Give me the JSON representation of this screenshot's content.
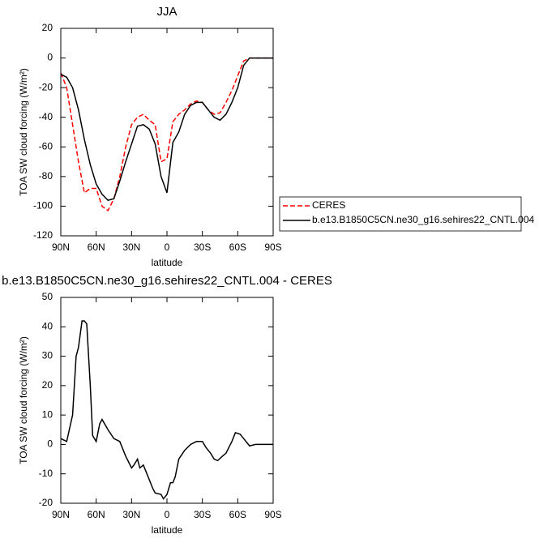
{
  "chart_data": [
    {
      "type": "line",
      "title": "JJA",
      "xlabel": "latitude",
      "ylabel": "TOA SW cloud forcing (W/m²)",
      "x": [
        90,
        85,
        80,
        75,
        70,
        65,
        60,
        55,
        50,
        45,
        40,
        35,
        30,
        25,
        20,
        15,
        10,
        5,
        0,
        -5,
        -10,
        -15,
        -20,
        -25,
        -30,
        -35,
        -40,
        -45,
        -50,
        -55,
        -60,
        -65,
        -70,
        -75,
        -80,
        -85,
        -90
      ],
      "series": [
        {
          "name": "CERES",
          "color": "#ff0000",
          "linestyle": "dashed",
          "values": [
            -10,
            -20,
            -45,
            -70,
            -91,
            -88,
            -88,
            -100,
            -103,
            -95,
            -80,
            -60,
            -45,
            -40,
            -38,
            -42,
            -45,
            -70,
            -68,
            -43,
            -38,
            -35,
            -31,
            -29,
            -30,
            -35,
            -38,
            -37,
            -30,
            -22,
            -12,
            -2,
            0,
            0,
            0,
            0,
            0
          ]
        },
        {
          "name": "b.e13.B1850C5CN.ne30_g16.sehires22_CNTL.004",
          "color": "#000000",
          "linestyle": "solid",
          "values": [
            -11,
            -13,
            -20,
            -35,
            -55,
            -72,
            -85,
            -92,
            -96,
            -95,
            -83,
            -70,
            -58,
            -46,
            -45,
            -48,
            -58,
            -80,
            -91,
            -57,
            -50,
            -38,
            -32,
            -30,
            -30,
            -35,
            -40,
            -42,
            -38,
            -30,
            -20,
            -5,
            0,
            0,
            0,
            0,
            0
          ]
        }
      ],
      "xlim": [
        90,
        -90
      ],
      "xticks": [
        {
          "value": 90,
          "label": "90N"
        },
        {
          "value": 60,
          "label": "60N"
        },
        {
          "value": 30,
          "label": "30N"
        },
        0,
        {
          "value": -30,
          "label": "30S"
        },
        {
          "value": -60,
          "label": "60S"
        },
        {
          "value": -90,
          "label": "90S"
        }
      ],
      "ylim": [
        -120,
        20
      ],
      "yticks": [
        -120,
        -100,
        -80,
        -60,
        -40,
        -20,
        0,
        20
      ],
      "legend": "outside-lower-right"
    },
    {
      "type": "line",
      "title": "b.e13.B1850C5CN.ne30_g16.sehires22_CNTL.004 - CERES",
      "xlabel": "latitude",
      "ylabel": "TOA SW cloud forcing (W/m²)",
      "x": [
        90,
        85,
        80,
        77,
        75,
        72,
        70,
        68,
        65,
        63,
        60,
        57,
        55,
        50,
        45,
        40,
        35,
        30,
        28,
        25,
        23,
        20,
        17,
        12,
        10,
        5,
        3,
        0,
        -3,
        -5,
        -7,
        -10,
        -15,
        -20,
        -25,
        -30,
        -33,
        -37,
        -40,
        -43,
        -47,
        -50,
        -55,
        -58,
        -62,
        -65,
        -70,
        -75,
        -80,
        -90
      ],
      "series": [
        {
          "color": "#000000",
          "linestyle": "solid",
          "values": [
            2,
            1,
            10,
            30,
            33,
            42,
            42,
            41,
            20,
            3,
            1,
            7,
            8.5,
            5,
            2,
            1,
            -4,
            -8,
            -7,
            -5,
            -8,
            -7,
            -10,
            -15,
            -16.5,
            -17,
            -18.5,
            -17,
            -13,
            -13,
            -11,
            -5,
            -2,
            0,
            1,
            1,
            -1,
            -3,
            -5,
            -5.5,
            -4,
            -3,
            1,
            4,
            3.5,
            2,
            -0.5,
            0,
            0,
            0
          ]
        }
      ],
      "xlim": [
        90,
        -90
      ],
      "xticks": [
        {
          "value": 90,
          "label": "90N"
        },
        {
          "value": 60,
          "label": "60N"
        },
        {
          "value": 30,
          "label": "30N"
        },
        0,
        {
          "value": -30,
          "label": "30S"
        },
        {
          "value": -60,
          "label": "60S"
        },
        {
          "value": -90,
          "label": "90S"
        }
      ],
      "ylim": [
        -20,
        50
      ],
      "yticks": [
        -20,
        -10,
        0,
        10,
        20,
        30,
        40,
        50
      ]
    }
  ]
}
